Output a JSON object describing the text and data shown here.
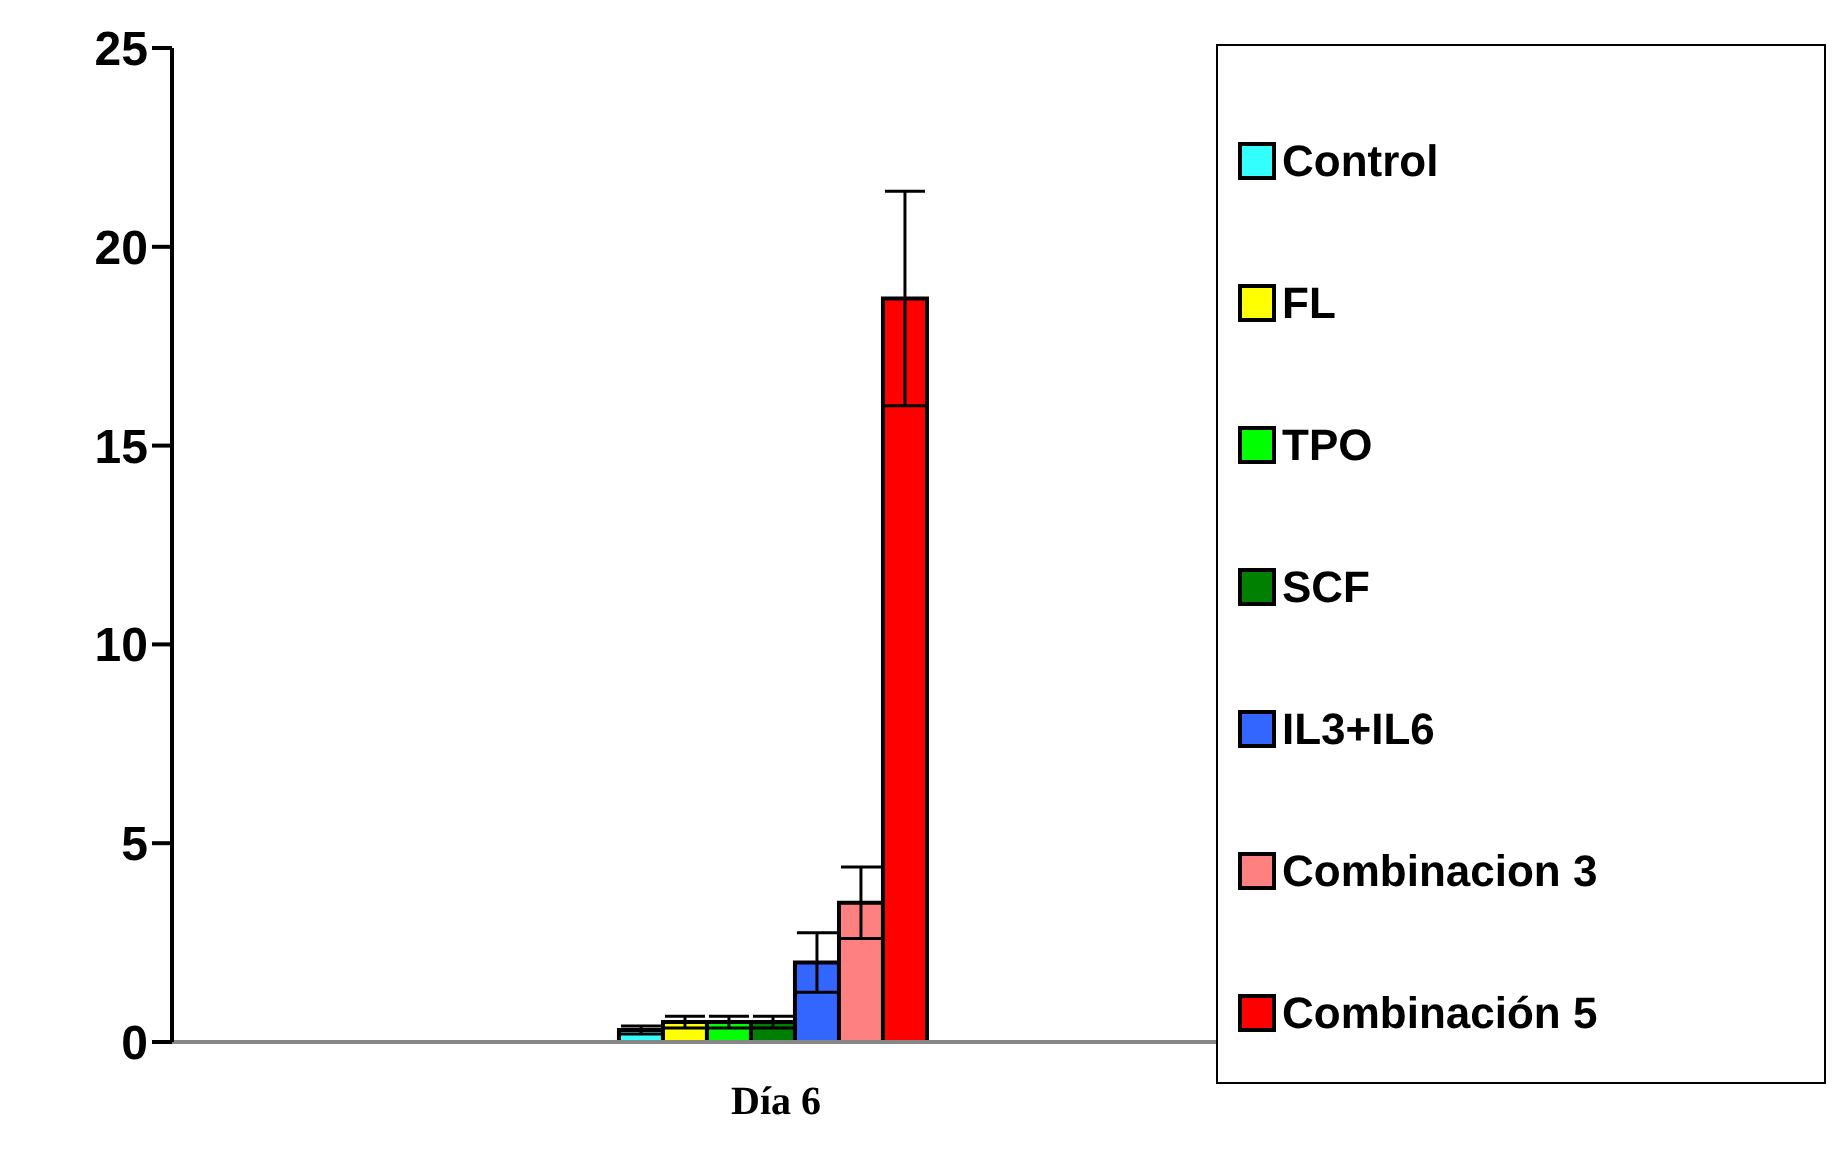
{
  "chart_data": {
    "type": "bar",
    "categories": [
      "Día 6"
    ],
    "series": [
      {
        "name": "Control",
        "color": "#33ffff",
        "values": [
          0.3
        ],
        "errors": [
          0.1
        ]
      },
      {
        "name": "FL",
        "color": "#ffff00",
        "values": [
          0.5
        ],
        "errors": [
          0.15
        ]
      },
      {
        "name": "TPO",
        "color": "#00ff00",
        "values": [
          0.5
        ],
        "errors": [
          0.15
        ]
      },
      {
        "name": "SCF",
        "color": "#008000",
        "values": [
          0.5
        ],
        "errors": [
          0.15
        ]
      },
      {
        "name": "IL3+IL6",
        "color": "#3366ff",
        "values": [
          2.0
        ],
        "errors": [
          0.75
        ]
      },
      {
        "name": "Combinacion 3",
        "color": "#ff8080",
        "values": [
          3.5
        ],
        "errors": [
          0.9
        ]
      },
      {
        "name": "Combinación 5",
        "color": "#ff0000",
        "values": [
          18.7
        ],
        "errors": [
          2.7
        ]
      }
    ],
    "ylim": [
      0,
      25
    ],
    "yticks": [
      0,
      5,
      10,
      15,
      20,
      25
    ],
    "legend": "right"
  }
}
